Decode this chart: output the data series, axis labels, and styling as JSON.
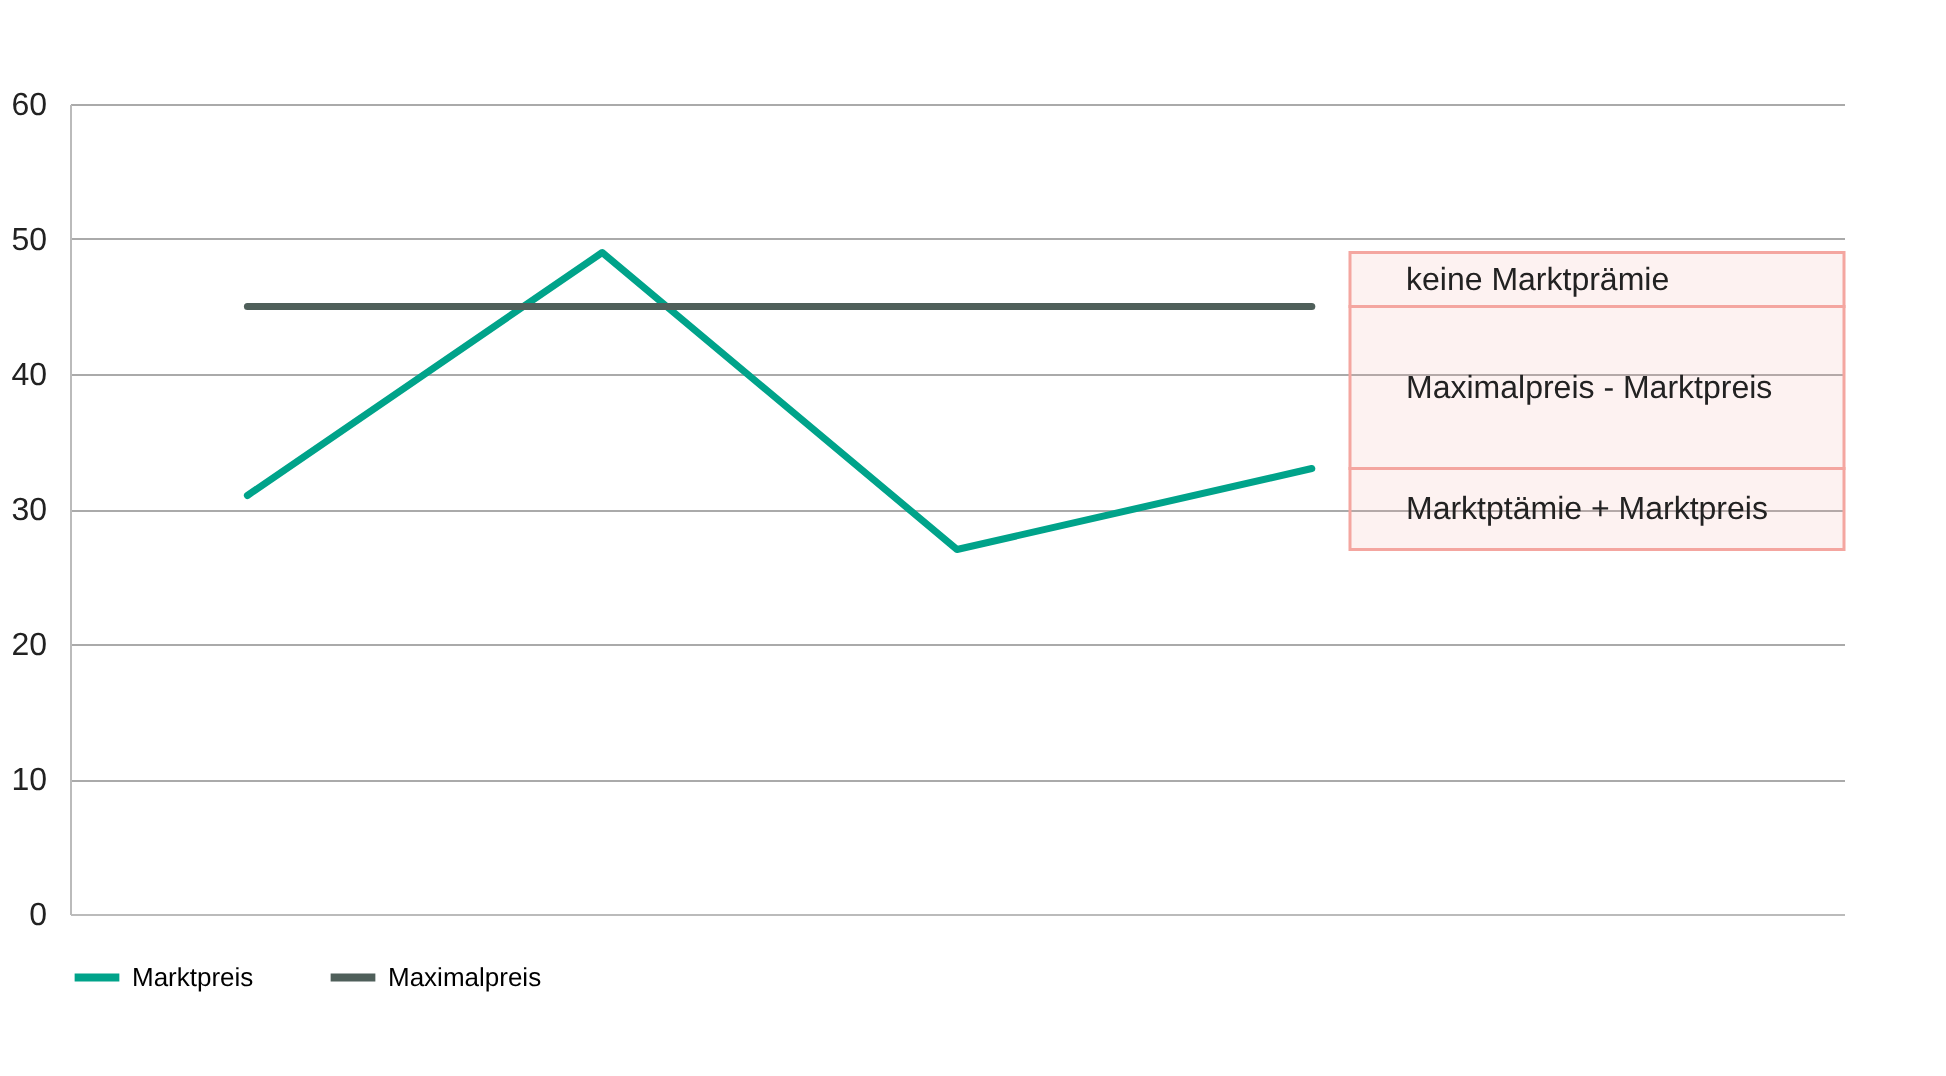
{
  "chart_data": {
    "type": "line",
    "categories": [
      null,
      null,
      null,
      null,
      null
    ],
    "series": [
      {
        "name": "Marktpreis",
        "color": "#00a38a",
        "values": [
          31,
          49,
          27,
          33,
          null
        ]
      },
      {
        "name": "Maximalpreis",
        "color": "#4f5f5a",
        "values": [
          45,
          45,
          45,
          45,
          null
        ]
      }
    ],
    "ylim": [
      0,
      60
    ],
    "yticks": [
      0,
      10,
      20,
      30,
      40,
      50,
      60
    ],
    "grid": "y",
    "legend": "bottom",
    "tick_labels": "y",
    "line_style": "solid",
    "marker": "none",
    "bands": [
      {
        "axis": "y",
        "from": 45,
        "to": 49,
        "label": "keine Marktprämie",
        "color": "#f4a6a0"
      },
      {
        "axis": "y",
        "from": 33,
        "to": 45,
        "label": "Maximalpreis - Marktpreis",
        "color": "#f4a6a0"
      },
      {
        "axis": "y",
        "from": 27,
        "to": 33,
        "label": "Marktptämie + Marktpreis",
        "color": "#f4a6a0"
      }
    ]
  }
}
